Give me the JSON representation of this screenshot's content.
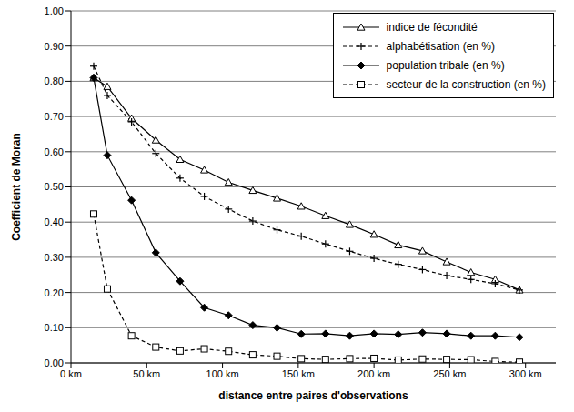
{
  "chart_data": {
    "type": "line",
    "x_label": "distance entre paires d'observations",
    "y_label": "Coefficient de Moran",
    "x": [
      15,
      24,
      40,
      56,
      72,
      88,
      104,
      120,
      136,
      152,
      168,
      184,
      200,
      216,
      232,
      248,
      264,
      280,
      296
    ],
    "series": [
      {
        "name": "indice  de fécondité",
        "color": "#000000",
        "marker": "triangle",
        "line_style": "solid",
        "values": [
          0.81,
          0.785,
          0.695,
          0.633,
          0.578,
          0.548,
          0.513,
          0.49,
          0.468,
          0.445,
          0.418,
          0.393,
          0.365,
          0.335,
          0.318,
          0.287,
          0.257,
          0.237,
          0.207
        ]
      },
      {
        "name": "alphabétisation (en %)",
        "color": "#000000",
        "marker": "plus",
        "line_style": "dashed",
        "values": [
          0.843,
          0.76,
          0.685,
          0.595,
          0.525,
          0.473,
          0.437,
          0.403,
          0.378,
          0.36,
          0.338,
          0.317,
          0.297,
          0.28,
          0.265,
          0.248,
          0.237,
          0.225,
          0.207
        ]
      },
      {
        "name": "population tribale (en %)",
        "color": "#000000",
        "marker": "diamond",
        "line_style": "solid",
        "values": [
          0.81,
          0.59,
          0.462,
          0.313,
          0.232,
          0.157,
          0.135,
          0.107,
          0.1,
          0.082,
          0.083,
          0.077,
          0.083,
          0.081,
          0.086,
          0.083,
          0.077,
          0.077,
          0.073
        ]
      },
      {
        "name": "secteur de la construction (en %)",
        "color": "#000000",
        "marker": "square",
        "line_style": "dashed",
        "values": [
          0.423,
          0.21,
          0.077,
          0.045,
          0.034,
          0.04,
          0.033,
          0.023,
          0.019,
          0.012,
          0.01,
          0.012,
          0.013,
          0.008,
          0.011,
          0.01,
          0.009,
          0.004,
          0.002
        ]
      }
    ],
    "xlim": [
      0,
      320
    ],
    "xticks": [
      {
        "value": 0,
        "label": "0 km"
      },
      {
        "value": 50,
        "label": "50 km"
      },
      {
        "value": 100,
        "label": "100 km"
      },
      {
        "value": 150,
        "label": "150 km"
      },
      {
        "value": 200,
        "label": "200 km"
      },
      {
        "value": 250,
        "label": "250 km"
      },
      {
        "value": 300,
        "label": "300 km"
      }
    ],
    "ylim": [
      0,
      1
    ],
    "yticks": [
      {
        "value": 0,
        "label": "0.00"
      },
      {
        "value": 0.1,
        "label": "0.10"
      },
      {
        "value": 0.2,
        "label": "0.20"
      },
      {
        "value": 0.3,
        "label": "0.30"
      },
      {
        "value": 0.4,
        "label": "0.40"
      },
      {
        "value": 0.5,
        "label": "0.50"
      },
      {
        "value": 0.6,
        "label": "0.60"
      },
      {
        "value": 0.7,
        "label": "0.70"
      },
      {
        "value": 0.8,
        "label": "0.80"
      },
      {
        "value": 0.9,
        "label": "0.90"
      },
      {
        "value": 1,
        "label": "1.00"
      }
    ],
    "grid": true,
    "legend": "upper right"
  }
}
